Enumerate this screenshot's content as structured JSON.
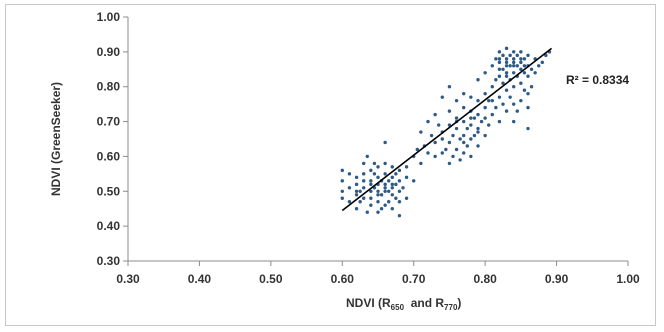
{
  "chart_data": {
    "type": "scatter",
    "title": "",
    "xlabel": {
      "main": "NDVI (R",
      "sub1": "650",
      "mid": "  and R",
      "sub2": "770",
      "end": ")"
    },
    "ylabel": "NDVI (GreenSeeker)",
    "xlim": [
      0.3,
      1.0
    ],
    "ylim": [
      0.3,
      1.0
    ],
    "x_ticks": [
      "0.30",
      "0.40",
      "0.50",
      "0.60",
      "0.70",
      "0.80",
      "0.90",
      "1.00"
    ],
    "y_ticks": [
      "0.30",
      "0.40",
      "0.50",
      "0.60",
      "0.70",
      "0.80",
      "0.90",
      "1.00"
    ],
    "grid": false,
    "legend": "none",
    "point_color": "#2e5a87",
    "trendline": {
      "type": "linear",
      "start": [
        0.6,
        0.445
      ],
      "end": [
        0.893,
        0.91
      ],
      "color": "#000000"
    },
    "annotation": "R² = 0.8334",
    "points": [
      [
        0.6,
        0.56
      ],
      [
        0.6,
        0.53
      ],
      [
        0.6,
        0.5
      ],
      [
        0.6,
        0.48
      ],
      [
        0.61,
        0.51
      ],
      [
        0.61,
        0.47
      ],
      [
        0.61,
        0.55
      ],
      [
        0.62,
        0.45
      ],
      [
        0.62,
        0.49
      ],
      [
        0.62,
        0.52
      ],
      [
        0.62,
        0.54
      ],
      [
        0.625,
        0.47
      ],
      [
        0.625,
        0.5
      ],
      [
        0.63,
        0.48
      ],
      [
        0.63,
        0.51
      ],
      [
        0.63,
        0.55
      ],
      [
        0.63,
        0.58
      ],
      [
        0.635,
        0.6
      ],
      [
        0.635,
        0.44
      ],
      [
        0.64,
        0.46
      ],
      [
        0.64,
        0.5
      ],
      [
        0.64,
        0.53
      ],
      [
        0.64,
        0.56
      ],
      [
        0.64,
        0.48
      ],
      [
        0.645,
        0.51
      ],
      [
        0.645,
        0.55
      ],
      [
        0.645,
        0.58
      ],
      [
        0.65,
        0.44
      ],
      [
        0.65,
        0.47
      ],
      [
        0.65,
        0.5
      ],
      [
        0.65,
        0.52
      ],
      [
        0.65,
        0.54
      ],
      [
        0.65,
        0.57
      ],
      [
        0.655,
        0.45
      ],
      [
        0.655,
        0.49
      ],
      [
        0.655,
        0.53
      ],
      [
        0.66,
        0.46
      ],
      [
        0.66,
        0.5
      ],
      [
        0.66,
        0.52
      ],
      [
        0.66,
        0.55
      ],
      [
        0.66,
        0.58
      ],
      [
        0.66,
        0.64
      ],
      [
        0.665,
        0.47
      ],
      [
        0.665,
        0.5
      ],
      [
        0.665,
        0.53
      ],
      [
        0.67,
        0.45
      ],
      [
        0.67,
        0.49
      ],
      [
        0.67,
        0.51
      ],
      [
        0.67,
        0.54
      ],
      [
        0.67,
        0.57
      ],
      [
        0.675,
        0.48
      ],
      [
        0.675,
        0.52
      ],
      [
        0.675,
        0.55
      ],
      [
        0.68,
        0.43
      ],
      [
        0.68,
        0.47
      ],
      [
        0.68,
        0.5
      ],
      [
        0.68,
        0.53
      ],
      [
        0.68,
        0.56
      ],
      [
        0.685,
        0.51
      ],
      [
        0.69,
        0.48
      ],
      [
        0.69,
        0.54
      ],
      [
        0.69,
        0.57
      ],
      [
        0.7,
        0.6
      ],
      [
        0.7,
        0.53
      ],
      [
        0.705,
        0.62
      ],
      [
        0.71,
        0.58
      ],
      [
        0.71,
        0.67
      ],
      [
        0.715,
        0.63
      ],
      [
        0.72,
        0.7
      ],
      [
        0.72,
        0.61
      ],
      [
        0.725,
        0.66
      ],
      [
        0.73,
        0.64
      ],
      [
        0.73,
        0.72
      ],
      [
        0.735,
        0.69
      ],
      [
        0.74,
        0.61
      ],
      [
        0.74,
        0.67
      ],
      [
        0.74,
        0.77
      ],
      [
        0.745,
        0.62
      ],
      [
        0.75,
        0.58
      ],
      [
        0.75,
        0.64
      ],
      [
        0.75,
        0.69
      ],
      [
        0.75,
        0.73
      ],
      [
        0.75,
        0.8
      ],
      [
        0.755,
        0.6
      ],
      [
        0.755,
        0.66
      ],
      [
        0.76,
        0.62
      ],
      [
        0.76,
        0.68
      ],
      [
        0.76,
        0.71
      ],
      [
        0.76,
        0.76
      ],
      [
        0.765,
        0.59
      ],
      [
        0.765,
        0.65
      ],
      [
        0.77,
        0.61
      ],
      [
        0.77,
        0.66
      ],
      [
        0.77,
        0.7
      ],
      [
        0.77,
        0.74
      ],
      [
        0.77,
        0.78
      ],
      [
        0.775,
        0.63
      ],
      [
        0.775,
        0.68
      ],
      [
        0.78,
        0.6
      ],
      [
        0.78,
        0.65
      ],
      [
        0.78,
        0.69
      ],
      [
        0.78,
        0.73
      ],
      [
        0.78,
        0.77
      ],
      [
        0.785,
        0.66
      ],
      [
        0.785,
        0.71
      ],
      [
        0.79,
        0.63
      ],
      [
        0.79,
        0.68
      ],
      [
        0.79,
        0.72
      ],
      [
        0.79,
        0.76
      ],
      [
        0.79,
        0.82
      ],
      [
        0.795,
        0.7
      ],
      [
        0.8,
        0.66
      ],
      [
        0.8,
        0.74
      ],
      [
        0.8,
        0.78
      ],
      [
        0.8,
        0.84
      ],
      [
        0.805,
        0.69
      ],
      [
        0.805,
        0.76
      ],
      [
        0.81,
        0.72
      ],
      [
        0.81,
        0.8
      ],
      [
        0.81,
        0.86
      ],
      [
        0.815,
        0.74
      ],
      [
        0.815,
        0.82
      ],
      [
        0.815,
        0.88
      ],
      [
        0.82,
        0.7
      ],
      [
        0.82,
        0.77
      ],
      [
        0.82,
        0.83
      ],
      [
        0.82,
        0.87
      ],
      [
        0.82,
        0.9
      ],
      [
        0.825,
        0.75
      ],
      [
        0.825,
        0.81
      ],
      [
        0.825,
        0.85
      ],
      [
        0.825,
        0.89
      ],
      [
        0.83,
        0.73
      ],
      [
        0.83,
        0.79
      ],
      [
        0.83,
        0.84
      ],
      [
        0.83,
        0.87
      ],
      [
        0.83,
        0.91
      ],
      [
        0.835,
        0.77
      ],
      [
        0.835,
        0.82
      ],
      [
        0.835,
        0.86
      ],
      [
        0.835,
        0.89
      ],
      [
        0.84,
        0.7
      ],
      [
        0.84,
        0.75
      ],
      [
        0.84,
        0.8
      ],
      [
        0.84,
        0.84
      ],
      [
        0.84,
        0.88
      ],
      [
        0.84,
        0.9
      ],
      [
        0.845,
        0.73
      ],
      [
        0.845,
        0.83
      ],
      [
        0.845,
        0.86
      ],
      [
        0.845,
        0.89
      ],
      [
        0.85,
        0.76
      ],
      [
        0.85,
        0.81
      ],
      [
        0.85,
        0.85
      ],
      [
        0.85,
        0.87
      ],
      [
        0.85,
        0.9
      ],
      [
        0.855,
        0.79
      ],
      [
        0.855,
        0.84
      ],
      [
        0.855,
        0.88
      ],
      [
        0.86,
        0.68
      ],
      [
        0.86,
        0.74
      ],
      [
        0.86,
        0.78
      ],
      [
        0.86,
        0.83
      ],
      [
        0.86,
        0.86
      ],
      [
        0.86,
        0.89
      ],
      [
        0.865,
        0.8
      ],
      [
        0.865,
        0.85
      ],
      [
        0.87,
        0.84
      ],
      [
        0.87,
        0.88
      ],
      [
        0.875,
        0.86
      ],
      [
        0.88,
        0.87
      ],
      [
        0.885,
        0.89
      ],
      [
        0.89,
        0.9
      ],
      [
        0.83,
        0.86
      ],
      [
        0.84,
        0.86
      ],
      [
        0.82,
        0.85
      ],
      [
        0.85,
        0.88
      ],
      [
        0.83,
        0.88
      ],
      [
        0.84,
        0.87
      ],
      [
        0.855,
        0.86
      ],
      [
        0.82,
        0.88
      ],
      [
        0.83,
        0.83
      ],
      [
        0.64,
        0.52
      ],
      [
        0.66,
        0.51
      ],
      [
        0.62,
        0.5
      ],
      [
        0.65,
        0.49
      ],
      [
        0.67,
        0.52
      ],
      [
        0.63,
        0.53
      ],
      [
        0.76,
        0.7
      ],
      [
        0.78,
        0.71
      ],
      [
        0.77,
        0.64
      ],
      [
        0.79,
        0.67
      ],
      [
        0.8,
        0.71
      ],
      [
        0.81,
        0.76
      ],
      [
        0.74,
        0.65
      ],
      [
        0.73,
        0.6
      ]
    ]
  }
}
